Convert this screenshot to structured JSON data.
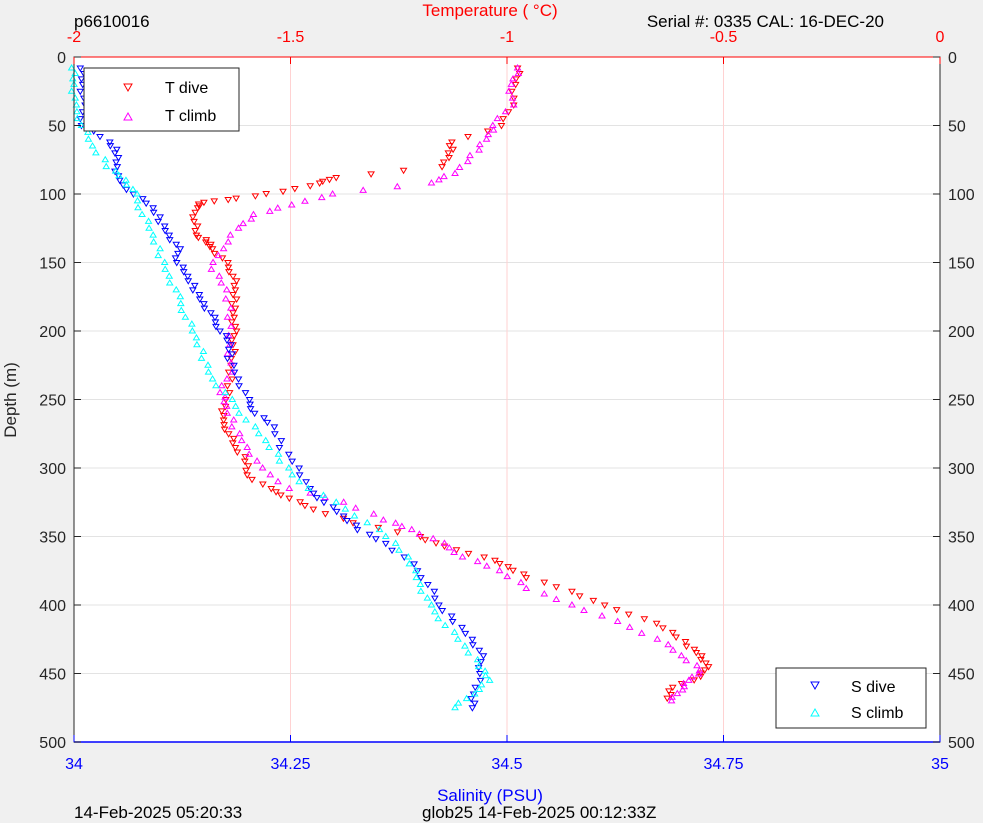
{
  "header": {
    "id_label": "p6610016",
    "serial_label": "Serial #: 0335  CAL: 16-DEC-20"
  },
  "footer": {
    "left_timestamp": "14-Feb-2025 05:20:33",
    "mission_label": "glob25 14-Feb-2025 00:12:33Z"
  },
  "colors": {
    "t_dive": "#ff0000",
    "t_climb": "#ff00ff",
    "s_dive": "#0000ff",
    "s_climb": "#00ffff",
    "temperature_axis": "#ff0000",
    "salinity_axis": "#0000ff"
  },
  "chart_data": {
    "type": "scatter",
    "y_axis": {
      "label": "Depth (m)",
      "range": [
        0,
        500
      ],
      "reversed": true,
      "ticks": [
        0,
        50,
        100,
        150,
        200,
        250,
        300,
        350,
        400,
        450,
        500
      ]
    },
    "temperature_axis": {
      "label": "Temperature (   °C)",
      "position": "top",
      "range": [
        -2,
        0
      ],
      "ticks": [
        -2,
        -1.5,
        -1,
        -0.5,
        0
      ],
      "tick_labels": [
        "-2",
        "-1.5",
        "-1",
        "-0.5",
        "0"
      ]
    },
    "salinity_axis": {
      "label": "Salinity (PSU)",
      "position": "bottom",
      "range": [
        34,
        35
      ],
      "ticks": [
        34,
        34.25,
        34.5,
        34.75,
        35
      ],
      "tick_labels": [
        "34",
        "34.25",
        "34.5",
        "34.75",
        "35"
      ]
    },
    "grid": true,
    "legends": [
      {
        "placement": "top-left",
        "entries": [
          "T dive",
          "T climb"
        ]
      },
      {
        "placement": "bottom-right",
        "entries": [
          "S dive",
          "S climb"
        ]
      }
    ],
    "series": [
      {
        "name": "T dive",
        "axis": "temperature",
        "marker": "triangle-down",
        "depth": [
          8,
          20,
          35,
          50,
          62,
          70,
          80,
          88,
          92,
          98,
          103,
          106,
          110,
          120,
          130,
          135,
          140,
          150,
          160,
          170,
          180,
          190,
          200,
          210,
          225,
          240,
          255,
          265,
          275,
          285,
          295,
          305,
          315,
          322,
          330,
          340,
          350,
          357,
          365,
          372,
          380,
          390,
          400,
          410,
          420,
          430,
          437,
          445,
          452,
          460,
          468
        ],
        "temperature": [
          -0.97,
          -0.98,
          -0.99,
          -1.01,
          -1.13,
          -1.13,
          -1.15,
          -1.4,
          -1.43,
          -1.52,
          -1.62,
          -1.7,
          -1.72,
          -1.72,
          -1.72,
          -1.69,
          -1.68,
          -1.65,
          -1.63,
          -1.63,
          -1.63,
          -1.63,
          -1.63,
          -1.63,
          -1.64,
          -1.64,
          -1.65,
          -1.66,
          -1.64,
          -1.63,
          -1.6,
          -1.6,
          -1.55,
          -1.5,
          -1.45,
          -1.35,
          -1.2,
          -1.15,
          -1.05,
          -1.0,
          -0.95,
          -0.85,
          -0.78,
          -0.68,
          -0.62,
          -0.58,
          -0.55,
          -0.54,
          -0.55,
          -0.62,
          -0.63
        ]
      },
      {
        "name": "T climb",
        "axis": "temperature",
        "marker": "triangle-up",
        "depth": [
          8,
          20,
          35,
          50,
          60,
          72,
          85,
          92,
          100,
          108,
          115,
          125,
          140,
          155,
          170,
          190,
          210,
          230,
          245,
          255,
          270,
          285,
          300,
          315,
          325,
          338,
          345,
          355,
          365,
          375,
          388,
          400,
          412,
          425,
          437,
          448,
          455,
          462,
          470
        ],
        "temperature": [
          -0.97,
          -0.99,
          -0.99,
          -1.03,
          -1.05,
          -1.08,
          -1.12,
          -1.18,
          -1.4,
          -1.5,
          -1.58,
          -1.62,
          -1.66,
          -1.68,
          -1.65,
          -1.64,
          -1.64,
          -1.64,
          -1.66,
          -1.65,
          -1.63,
          -1.6,
          -1.57,
          -1.5,
          -1.38,
          -1.28,
          -1.22,
          -1.15,
          -1.1,
          -1.02,
          -0.95,
          -0.85,
          -0.75,
          -0.65,
          -0.6,
          -0.55,
          -0.58,
          -0.6,
          -0.62
        ]
      },
      {
        "name": "S dive",
        "axis": "salinity",
        "marker": "triangle-down",
        "depth": [
          8,
          20,
          35,
          50,
          62,
          70,
          80,
          90,
          100,
          110,
          120,
          130,
          140,
          150,
          160,
          170,
          180,
          190,
          200,
          210,
          220,
          235,
          250,
          260,
          270,
          285,
          300,
          315,
          325,
          335,
          345,
          355,
          370,
          385,
          400,
          412,
          425,
          437,
          450,
          465,
          475
        ],
        "salinity": [
          34.01,
          34.01,
          34.01,
          34.01,
          34.04,
          34.05,
          34.05,
          34.05,
          34.07,
          34.09,
          34.1,
          34.11,
          34.12,
          34.12,
          34.13,
          34.14,
          34.15,
          34.16,
          34.17,
          34.18,
          34.18,
          34.19,
          34.2,
          34.21,
          34.23,
          34.24,
          34.26,
          34.27,
          34.29,
          34.31,
          34.33,
          34.36,
          34.39,
          34.41,
          34.42,
          34.44,
          34.46,
          34.47,
          34.47,
          34.46,
          34.46
        ]
      },
      {
        "name": "S climb",
        "axis": "salinity",
        "marker": "triangle-up",
        "depth": [
          8,
          20,
          35,
          50,
          65,
          80,
          90,
          100,
          115,
          130,
          145,
          160,
          175,
          190,
          205,
          220,
          235,
          250,
          265,
          280,
          295,
          310,
          325,
          340,
          355,
          370,
          385,
          400,
          415,
          430,
          445,
          455,
          465,
          475
        ],
        "salinity": [
          34.0,
          34.0,
          34.0,
          34.01,
          34.02,
          34.04,
          34.06,
          34.07,
          34.08,
          34.09,
          34.1,
          34.11,
          34.12,
          34.13,
          34.14,
          34.15,
          34.16,
          34.18,
          34.2,
          34.22,
          34.24,
          34.26,
          34.3,
          34.34,
          34.37,
          34.39,
          34.4,
          34.41,
          34.43,
          34.45,
          34.47,
          34.48,
          34.46,
          34.44
        ]
      }
    ]
  }
}
